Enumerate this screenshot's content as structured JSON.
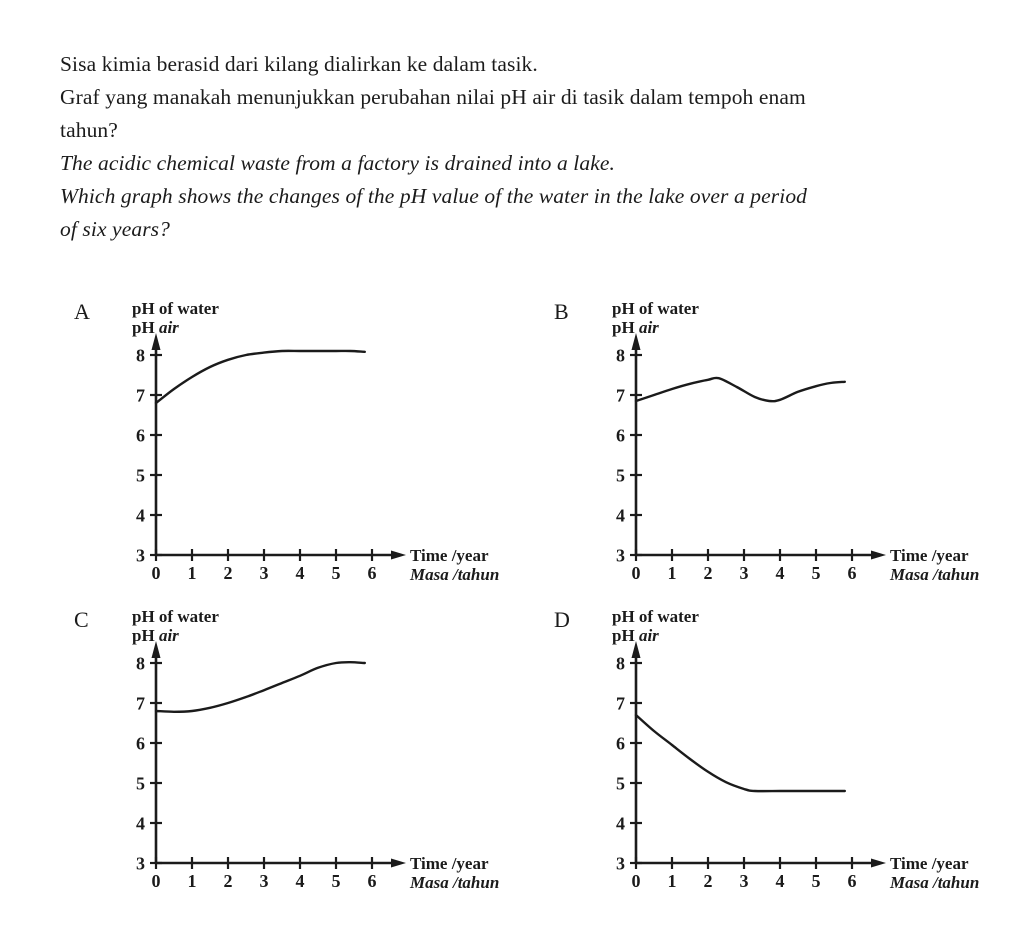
{
  "page": {
    "background": "#ffffff",
    "ink": "#1b1b1b"
  },
  "question": {
    "lines": [
      {
        "lang": "ms",
        "text": "Sisa kimia berasid dari kilang dialirkan ke dalam tasik."
      },
      {
        "lang": "ms",
        "text": "Graf yang manakah menunjukkan perubahan nilai pH air di tasik dalam tempoh enam"
      },
      {
        "lang": "ms",
        "text": "tahun?"
      },
      {
        "lang": "en",
        "text": "The acidic chemical waste from a factory is drained into a lake."
      },
      {
        "lang": "en",
        "text": "Which graph shows the changes of the pH value of the water in the lake over a period"
      },
      {
        "lang": "en",
        "text": "of six years?"
      }
    ]
  },
  "chart_data": [
    {
      "type": "line",
      "option": "A",
      "ylabel": "pH of water",
      "ylabel_ms_prefix": "pH",
      "ylabel_ms_italic": "air",
      "xlabel": "Time /year",
      "xlabel_ms": "Masa /tahun",
      "y_ticks": [
        3,
        4,
        5,
        6,
        7,
        8
      ],
      "x_ticks": [
        0,
        1,
        2,
        3,
        4,
        5,
        6
      ],
      "ylim": [
        3,
        8.5
      ],
      "xlim": [
        0,
        6.8
      ],
      "x": [
        0,
        0.5,
        1,
        1.5,
        2,
        2.5,
        3,
        3.5,
        4,
        4.5,
        5,
        5.4,
        5.8
      ],
      "y": [
        6.8,
        7.15,
        7.45,
        7.7,
        7.88,
        8.0,
        8.06,
        8.1,
        8.1,
        8.1,
        8.1,
        8.1,
        8.08
      ],
      "description": "pH rises from about 6.8 at year 0 and levels off at about 8.1 from year 3 onwards"
    },
    {
      "type": "line",
      "option": "B",
      "ylabel": "pH of water",
      "ylabel_ms_prefix": "pH",
      "ylabel_ms_italic": "air",
      "xlabel": "Time /year",
      "xlabel_ms": "Masa /tahun",
      "y_ticks": [
        3,
        4,
        5,
        6,
        7,
        8
      ],
      "x_ticks": [
        0,
        1,
        2,
        3,
        4,
        5,
        6
      ],
      "ylim": [
        3,
        8.5
      ],
      "xlim": [
        0,
        6.8
      ],
      "x": [
        0,
        0.5,
        1,
        1.5,
        2,
        2.3,
        2.8,
        3.3,
        3.7,
        4,
        4.5,
        5,
        5.4,
        5.8
      ],
      "y": [
        6.85,
        7.0,
        7.15,
        7.28,
        7.38,
        7.42,
        7.2,
        6.95,
        6.85,
        6.88,
        7.08,
        7.22,
        7.3,
        7.33
      ],
      "description": "pH rises from about 6.85 to about 7.4 at year 2, dips to about 6.85 near year 4, then rises back to about 7.3"
    },
    {
      "type": "line",
      "option": "C",
      "ylabel": "pH of water",
      "ylabel_ms_prefix": "pH",
      "ylabel_ms_italic": "air",
      "xlabel": "Time /year",
      "xlabel_ms": "Masa /tahun",
      "y_ticks": [
        3,
        4,
        5,
        6,
        7,
        8
      ],
      "x_ticks": [
        0,
        1,
        2,
        3,
        4,
        5,
        6
      ],
      "ylim": [
        3,
        8.5
      ],
      "xlim": [
        0,
        6.8
      ],
      "x": [
        0,
        0.5,
        1,
        1.5,
        2,
        2.5,
        3,
        3.5,
        4,
        4.5,
        5,
        5.4,
        5.8
      ],
      "y": [
        6.8,
        6.78,
        6.8,
        6.88,
        7.0,
        7.15,
        7.32,
        7.5,
        7.68,
        7.88,
        8.0,
        8.02,
        8.0
      ],
      "description": "pH stays near 6.8 for the first year then rises steadily to about 8.0 by year 5 and levels off"
    },
    {
      "type": "line",
      "option": "D",
      "ylabel": "pH of water",
      "ylabel_ms_prefix": "pH",
      "ylabel_ms_italic": "air",
      "xlabel": "Time /year",
      "xlabel_ms": "Masa /tahun",
      "y_ticks": [
        3,
        4,
        5,
        6,
        7,
        8
      ],
      "x_ticks": [
        0,
        1,
        2,
        3,
        4,
        5,
        6
      ],
      "ylim": [
        3,
        8.5
      ],
      "xlim": [
        0,
        6.8
      ],
      "x": [
        0,
        0.5,
        1,
        1.5,
        2,
        2.5,
        3,
        3.3,
        4,
        4.5,
        5,
        5.8
      ],
      "y": [
        6.7,
        6.3,
        5.95,
        5.6,
        5.28,
        5.02,
        4.85,
        4.8,
        4.8,
        4.8,
        4.8,
        4.8
      ],
      "description": "pH falls from about 6.7 to about 4.8 by year 3 and stays constant at about 4.8"
    }
  ]
}
